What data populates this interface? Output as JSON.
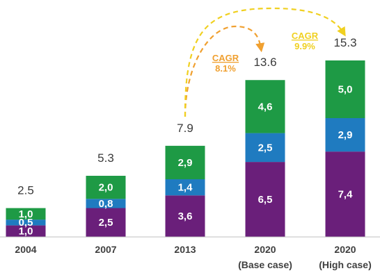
{
  "chart_data": {
    "type": "bar",
    "stacked": true,
    "categories": [
      "2004",
      "2007",
      "2013",
      "2020",
      "2020"
    ],
    "category_sublabels": [
      "",
      "",
      "",
      "(Base case)",
      "(High case)"
    ],
    "series": [
      {
        "color": "#6a1f7a",
        "values": [
          1.0,
          2.5,
          3.6,
          6.5,
          7.4
        ],
        "labels": [
          "1,0",
          "2,5",
          "3,6",
          "6,5",
          "7,4"
        ]
      },
      {
        "color": "#1f7bc0",
        "values": [
          0.5,
          0.8,
          1.4,
          2.5,
          2.9
        ],
        "labels": [
          "0,5",
          "0,8",
          "1,4",
          "2,5",
          "2,9"
        ]
      },
      {
        "color": "#1e9a45",
        "values": [
          1.0,
          2.0,
          2.9,
          4.6,
          5.0
        ],
        "labels": [
          "1,0",
          "2,0",
          "2,9",
          "4,6",
          "5,0"
        ]
      }
    ],
    "totals": [
      "2.5",
      "5.3",
      "7.9",
      "13.6",
      "15.3"
    ],
    "ylim": [
      0,
      15.3
    ],
    "grid": false,
    "legend": "none",
    "annotations": [
      {
        "title": "CAGR",
        "value": "8.1%",
        "from": 2,
        "to": 3,
        "color": "#f0a030"
      },
      {
        "title": "CAGR",
        "value": "9.9%",
        "from": 2,
        "to": 4,
        "color": "#f0d020"
      }
    ]
  }
}
